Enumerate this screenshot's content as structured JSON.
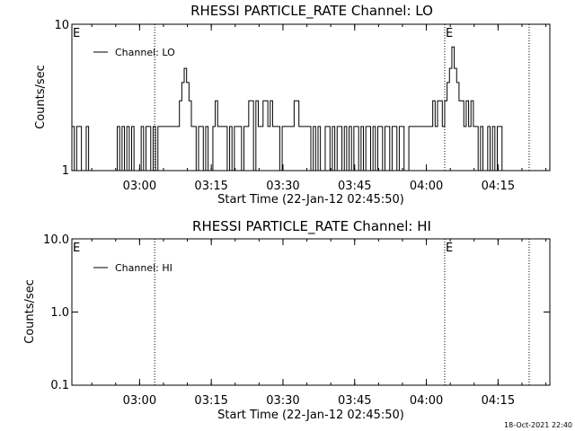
{
  "footer": {
    "timestamp": "18-Oct-2021 22:40"
  },
  "chart_data": [
    {
      "type": "line",
      "title": "RHESSI PARTICLE_RATE Channel: LO",
      "xlabel": "Start Time (22-Jan-12 02:45:50)",
      "ylabel": "Counts/sec",
      "yscale": "log",
      "ylim": [
        1,
        10
      ],
      "y_tick_labels": [
        "1",
        "10"
      ],
      "x_tick_labels": [
        "03:00",
        "03:15",
        "03:30",
        "03:45",
        "04:00",
        "04:15"
      ],
      "xlim_minutes_after_start": [
        0,
        100
      ],
      "legend": {
        "entries": [
          "Channel: LO"
        ],
        "placement": "top-left"
      },
      "event_markers": [
        {
          "label": "E",
          "time": "02:45:50",
          "style": "dotted"
        },
        {
          "label": "",
          "time": "03:03:10",
          "style": "dotted"
        },
        {
          "label": "E",
          "time": "04:03:50",
          "style": "dotted"
        },
        {
          "label": "",
          "time": "04:21:30",
          "style": "dotted"
        }
      ],
      "series": [
        {
          "name": "Channel: LO",
          "x_minutes_after_start": [
            0,
            0.5,
            1,
            1.5,
            2,
            2.5,
            3,
            3.5,
            4,
            4.5,
            5,
            5.5,
            6,
            6.5,
            7,
            7.5,
            8,
            8.5,
            9,
            9.5,
            10,
            10.5,
            11,
            11.5,
            12,
            12.5,
            13,
            13.5,
            14,
            14.5,
            15,
            15.5,
            16,
            16.5,
            17,
            17.5,
            18,
            18.5,
            19,
            19.5,
            20,
            20.5,
            21,
            21.5,
            22,
            22.5,
            23,
            23.5,
            24,
            24.5,
            25,
            25.5,
            26,
            26.5,
            27,
            27.5,
            28,
            28.5,
            29,
            29.5,
            30,
            30.5,
            31,
            31.5,
            32,
            32.5,
            33,
            33.5,
            34,
            34.5,
            35,
            35.5,
            36,
            36.5,
            37,
            37.5,
            38,
            38.5,
            39,
            39.5,
            40,
            40.5,
            41,
            41.5,
            42,
            42.5,
            43,
            43.5,
            44,
            44.5,
            45,
            45.5,
            46,
            46.5,
            47,
            47.5,
            48,
            48.5,
            49,
            49.5,
            50,
            50.5,
            51,
            51.5,
            52,
            52.5,
            53,
            53.5,
            54,
            54.5,
            55,
            55.5,
            56,
            56.5,
            57,
            57.5,
            58,
            58.5,
            59,
            59.5,
            60,
            60.5,
            61,
            61.5,
            62,
            62.5,
            63,
            63.5,
            64,
            64.5,
            65,
            65.5,
            66,
            66.5,
            67,
            67.5,
            68,
            68.5,
            69,
            69.5,
            70,
            70.5,
            71,
            71.5,
            72,
            72.5,
            73,
            73.5,
            74,
            74.5,
            75,
            75.5,
            76,
            76.5,
            77,
            77.5,
            78,
            78.5,
            79,
            79.5,
            80,
            80.5,
            81,
            81.5,
            82,
            82.5,
            83,
            83.5,
            84,
            84.5,
            85,
            85.5,
            86,
            86.5,
            87,
            87.5,
            88,
            88.5,
            89,
            89.5,
            90,
            90.5,
            91,
            91.5,
            92,
            92.5,
            93,
            93.5,
            94,
            94.5,
            95,
            95.5,
            96,
            96.5,
            97,
            97.5,
            98,
            98.5,
            99,
            99.5
          ],
          "values": [
            2,
            1,
            2,
            2,
            1,
            1,
            2,
            1,
            1,
            1,
            1,
            1,
            1,
            1,
            1,
            1,
            1,
            1,
            1,
            2,
            1,
            2,
            1,
            2,
            1,
            2,
            1,
            1,
            1,
            2,
            1,
            2,
            2,
            1,
            2,
            1,
            2,
            2,
            2,
            2,
            2,
            2,
            2,
            2,
            2,
            3,
            4,
            5,
            4,
            3,
            2,
            2,
            1,
            2,
            2,
            1,
            2,
            1,
            1,
            2,
            3,
            2,
            2,
            2,
            2,
            1,
            2,
            1,
            2,
            2,
            2,
            1,
            2,
            2,
            3,
            3,
            1,
            3,
            2,
            2,
            3,
            3,
            2,
            3,
            2,
            2,
            2,
            1,
            2,
            2,
            2,
            2,
            2,
            3,
            3,
            2,
            2,
            2,
            2,
            2,
            1,
            2,
            1,
            2,
            1,
            1,
            2,
            2,
            1,
            2,
            1,
            2,
            2,
            1,
            2,
            1,
            2,
            1,
            2,
            2,
            1,
            2,
            1,
            2,
            2,
            1,
            2,
            1,
            2,
            2,
            1,
            2,
            2,
            1,
            2,
            2,
            1,
            2,
            2,
            1,
            1,
            2,
            2,
            2,
            2,
            2,
            2,
            2,
            2,
            2,
            2,
            3,
            2,
            3,
            3,
            2,
            3,
            4,
            5,
            7,
            5,
            4,
            3,
            3,
            2,
            3,
            2,
            3,
            2,
            2,
            1,
            2,
            1,
            1,
            2,
            1,
            2,
            1,
            2,
            2,
            1,
            1,
            1,
            1,
            1,
            1,
            1,
            1,
            1,
            1
          ]
        }
      ]
    },
    {
      "type": "line",
      "title": "RHESSI PARTICLE_RATE Channel: HI",
      "xlabel": "Start Time (22-Jan-12 02:45:50)",
      "ylabel": "Counts/sec",
      "yscale": "log",
      "ylim": [
        0.1,
        10
      ],
      "y_tick_labels": [
        "0.1",
        "1.0",
        "10.0"
      ],
      "x_tick_labels": [
        "03:00",
        "03:15",
        "03:30",
        "03:45",
        "04:00",
        "04:15"
      ],
      "xlim_minutes_after_start": [
        0,
        100
      ],
      "legend": {
        "entries": [
          "Channel: HI"
        ],
        "placement": "top-left"
      },
      "event_markers": [
        {
          "label": "E",
          "time": "02:45:50",
          "style": "dotted"
        },
        {
          "label": "",
          "time": "03:03:10",
          "style": "dotted"
        },
        {
          "label": "E",
          "time": "04:03:50",
          "style": "dotted"
        },
        {
          "label": "",
          "time": "04:21:30",
          "style": "dotted"
        }
      ],
      "series": [
        {
          "name": "Channel: HI",
          "x_minutes_after_start": [],
          "values": []
        }
      ]
    }
  ]
}
